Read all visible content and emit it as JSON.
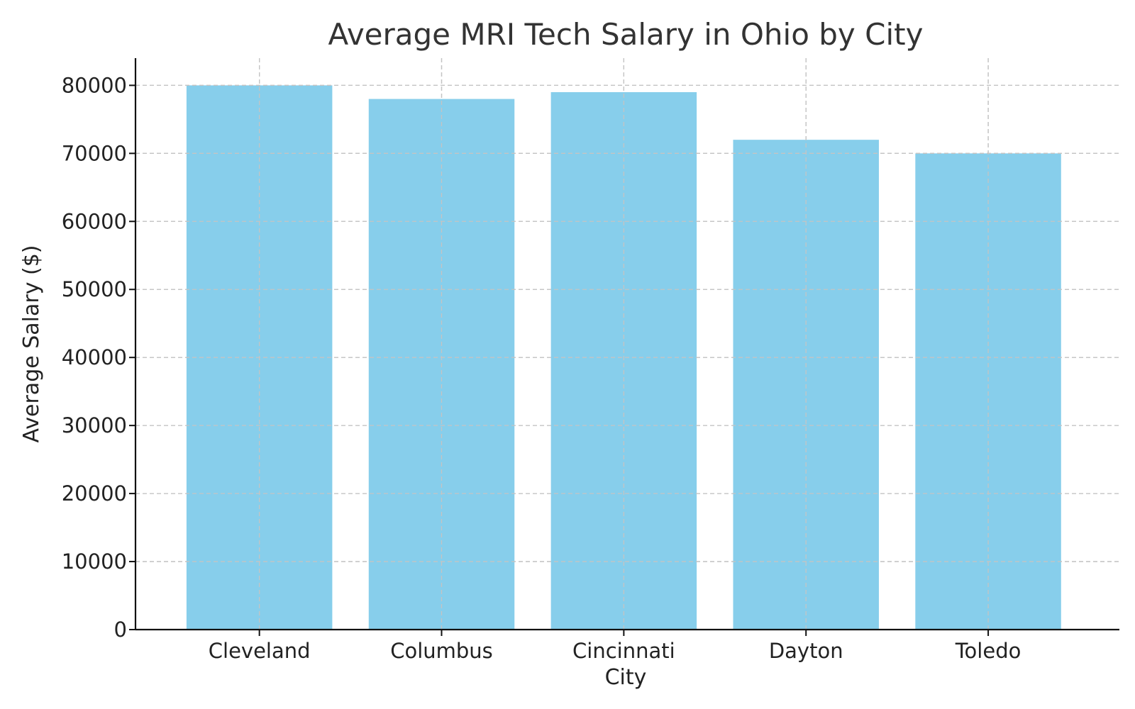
{
  "chart_data": {
    "type": "bar",
    "title": "Average MRI Tech Salary in Ohio by City",
    "xlabel": "City",
    "ylabel": "Average Salary ($)",
    "categories": [
      "Cleveland",
      "Columbus",
      "Cincinnati",
      "Dayton",
      "Toledo"
    ],
    "values": [
      80000,
      78000,
      79000,
      72000,
      70000
    ],
    "ylim": [
      0,
      84000
    ],
    "yticks": [
      0,
      10000,
      20000,
      30000,
      40000,
      50000,
      60000,
      70000,
      80000
    ],
    "grid": true,
    "bar_color": "#87ceeb"
  }
}
